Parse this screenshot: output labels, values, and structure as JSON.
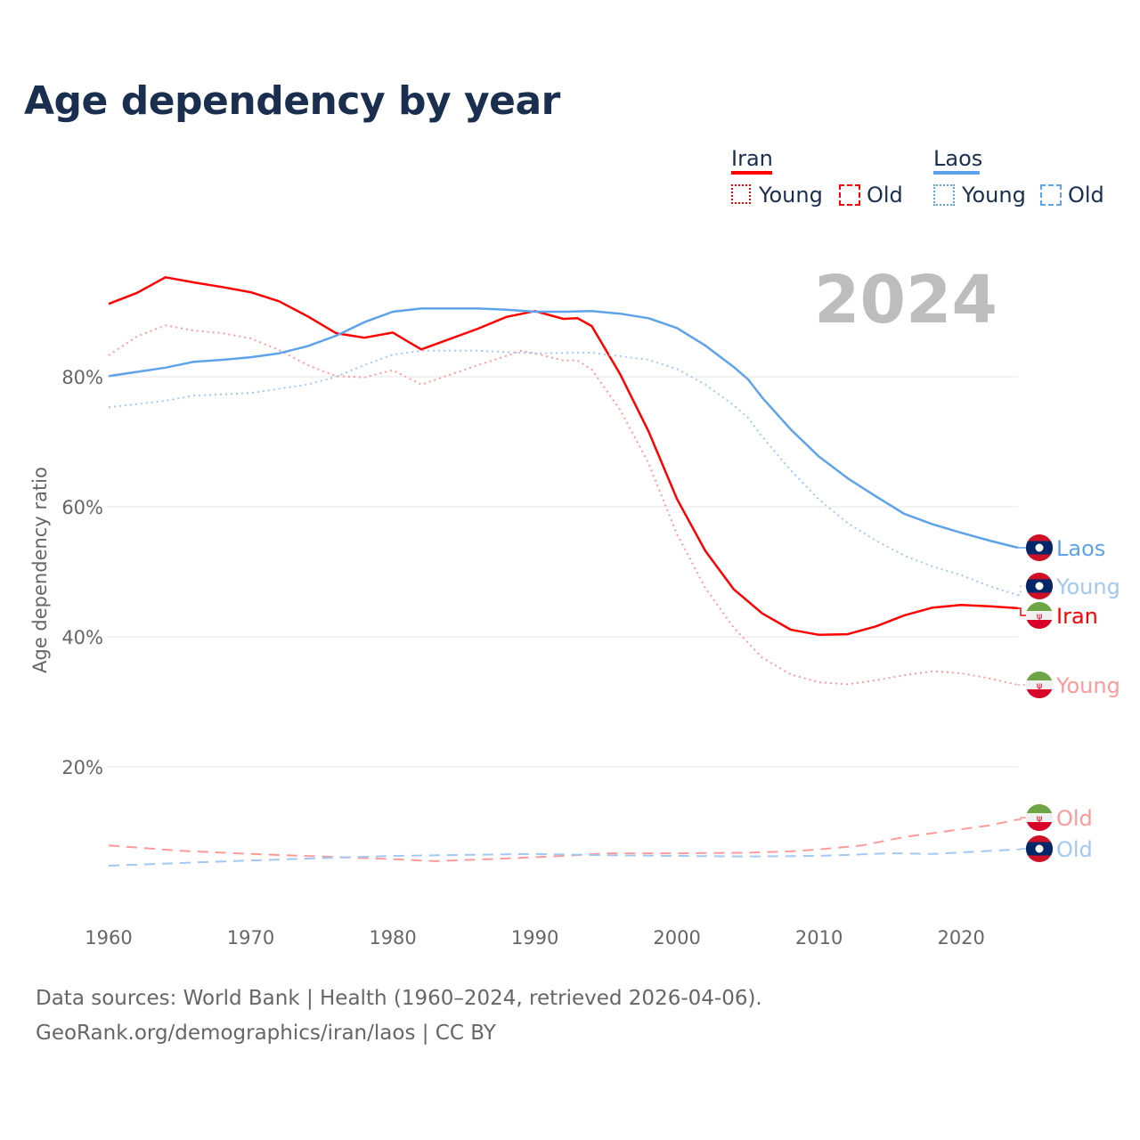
{
  "chart_data": {
    "type": "line",
    "title": "Age dependency by year",
    "ylabel": "Age dependency ratio",
    "xlabel": "",
    "xlim": [
      1960,
      2024
    ],
    "ylim": [
      0,
      100
    ],
    "x_ticks": [
      "1960",
      "1970",
      "1980",
      "1990",
      "2000",
      "2010",
      "2020"
    ],
    "y_ticks": [
      {
        "v": 20,
        "label": "20%"
      },
      {
        "v": 40,
        "label": "40%"
      },
      {
        "v": 60,
        "label": "60%"
      },
      {
        "v": 80,
        "label": "80%"
      }
    ],
    "year_display": "2024",
    "legend": {
      "groups": [
        {
          "name": "Iran",
          "color": "#ff0000",
          "young": "Young",
          "old": "Old"
        },
        {
          "name": "Laos",
          "color": "#5ea3ea",
          "young": "Young",
          "old": "Old"
        }
      ]
    },
    "series": [
      {
        "name": "Iran",
        "label": "Iran",
        "country": "Iran",
        "kind": "total",
        "color": "#ff0000",
        "style": "solid",
        "x": [
          1960,
          1962,
          1964,
          1966,
          1968,
          1970,
          1972,
          1974,
          1976,
          1978,
          1980,
          1981,
          1982,
          1984,
          1986,
          1988,
          1990,
          1992,
          1993,
          1994,
          1996,
          1998,
          2000,
          2002,
          2004,
          2006,
          2008,
          2010,
          2012,
          2014,
          2016,
          2018,
          2020,
          2022,
          2024
        ],
        "y": [
          91.2,
          92.9,
          95.3,
          94.5,
          93.8,
          93.0,
          91.6,
          89.3,
          86.7,
          86.0,
          86.8,
          85.5,
          84.2,
          85.8,
          87.4,
          89.2,
          90.1,
          88.9,
          89.0,
          87.8,
          80.4,
          71.6,
          61.2,
          53.2,
          47.3,
          43.6,
          41.1,
          40.3,
          40.4,
          41.6,
          43.3,
          44.5,
          44.9,
          44.7,
          44.4
        ]
      },
      {
        "name": "Iran Young",
        "label": "Young",
        "country": "Iran",
        "kind": "young",
        "color": "#ff9a9a",
        "style": "dotted",
        "x": [
          1960,
          1962,
          1964,
          1966,
          1968,
          1970,
          1972,
          1974,
          1976,
          1978,
          1980,
          1982,
          1984,
          1986,
          1988,
          1989,
          1990,
          1992,
          1993,
          1994,
          1996,
          1998,
          2000,
          2002,
          2004,
          2006,
          2008,
          2010,
          2012,
          2014,
          2016,
          2018,
          2020,
          2022,
          2024
        ],
        "y": [
          83.3,
          86.2,
          87.9,
          87.1,
          86.7,
          85.9,
          84.1,
          81.8,
          80.1,
          79.9,
          81.0,
          78.8,
          80.3,
          81.8,
          83.2,
          84.0,
          83.6,
          82.5,
          82.5,
          81.1,
          74.9,
          66.7,
          55.8,
          47.5,
          41.4,
          36.8,
          34.2,
          33.0,
          32.7,
          33.3,
          34.1,
          34.7,
          34.4,
          33.6,
          32.6
        ]
      },
      {
        "name": "Iran Old",
        "label": "Old",
        "country": "Iran",
        "kind": "old",
        "color": "#ff9a9a",
        "style": "dashed",
        "x": [
          1960,
          1965,
          1970,
          1975,
          1980,
          1983,
          1988,
          1992,
          1995,
          2000,
          2005,
          2008,
          2010,
          2013,
          2016,
          2020,
          2022,
          2024
        ],
        "y": [
          7.9,
          7.1,
          6.6,
          6.2,
          5.8,
          5.5,
          5.9,
          6.3,
          6.7,
          6.7,
          6.8,
          7.0,
          7.3,
          7.9,
          9.2,
          10.4,
          11.0,
          11.9
        ]
      },
      {
        "name": "Laos",
        "label": "Laos",
        "country": "Laos",
        "kind": "total",
        "color": "#5ea3ea",
        "style": "solid",
        "x": [
          1960,
          1964,
          1966,
          1968,
          1970,
          1972,
          1974,
          1976,
          1978,
          1980,
          1982,
          1986,
          1988,
          1990,
          1992,
          1994,
          1996,
          1998,
          2000,
          2002,
          2004,
          2005,
          2006,
          2008,
          2010,
          2012,
          2014,
          2016,
          2018,
          2020,
          2022,
          2024
        ],
        "y": [
          80.1,
          81.4,
          82.3,
          82.6,
          83.0,
          83.6,
          84.7,
          86.3,
          88.4,
          90.0,
          90.5,
          90.5,
          90.3,
          90.0,
          90.0,
          90.1,
          89.7,
          89.0,
          87.5,
          84.8,
          81.5,
          79.6,
          76.8,
          71.9,
          67.7,
          64.4,
          61.6,
          58.9,
          57.3,
          56.0,
          54.8,
          53.7
        ]
      },
      {
        "name": "Laos Young",
        "label": "Young",
        "country": "Laos",
        "kind": "young",
        "color": "#a3c8f2",
        "style": "dotted",
        "x": [
          1960,
          1964,
          1966,
          1970,
          1974,
          1976,
          1978,
          1980,
          1982,
          1986,
          1990,
          1994,
          1998,
          2000,
          2002,
          2004,
          2005,
          2006,
          2008,
          2010,
          2012,
          2014,
          2016,
          2018,
          2020,
          2022,
          2024
        ],
        "y": [
          75.3,
          76.3,
          77.1,
          77.5,
          78.8,
          80.0,
          81.8,
          83.4,
          84.0,
          84.0,
          83.6,
          83.7,
          82.6,
          81.2,
          78.8,
          75.6,
          73.7,
          70.8,
          65.6,
          61.1,
          57.5,
          54.8,
          52.5,
          50.8,
          49.5,
          47.8,
          46.4
        ]
      },
      {
        "name": "Laos Old",
        "label": "Old",
        "country": "Laos",
        "kind": "old",
        "color": "#a3c8f2",
        "style": "dashed",
        "x": [
          1960,
          1970,
          1980,
          1990,
          1995,
          2000,
          2005,
          2010,
          2015,
          2018,
          2024
        ],
        "y": [
          4.8,
          5.6,
          6.3,
          6.6,
          6.4,
          6.3,
          6.2,
          6.3,
          6.7,
          6.6,
          7.3
        ]
      }
    ]
  },
  "footer": {
    "line1": "Data sources: World Bank | Health (1960–2024, retrieved 2026-04-06).",
    "line2": "GeoRank.org/demographics/iran/laos | CC BY"
  }
}
